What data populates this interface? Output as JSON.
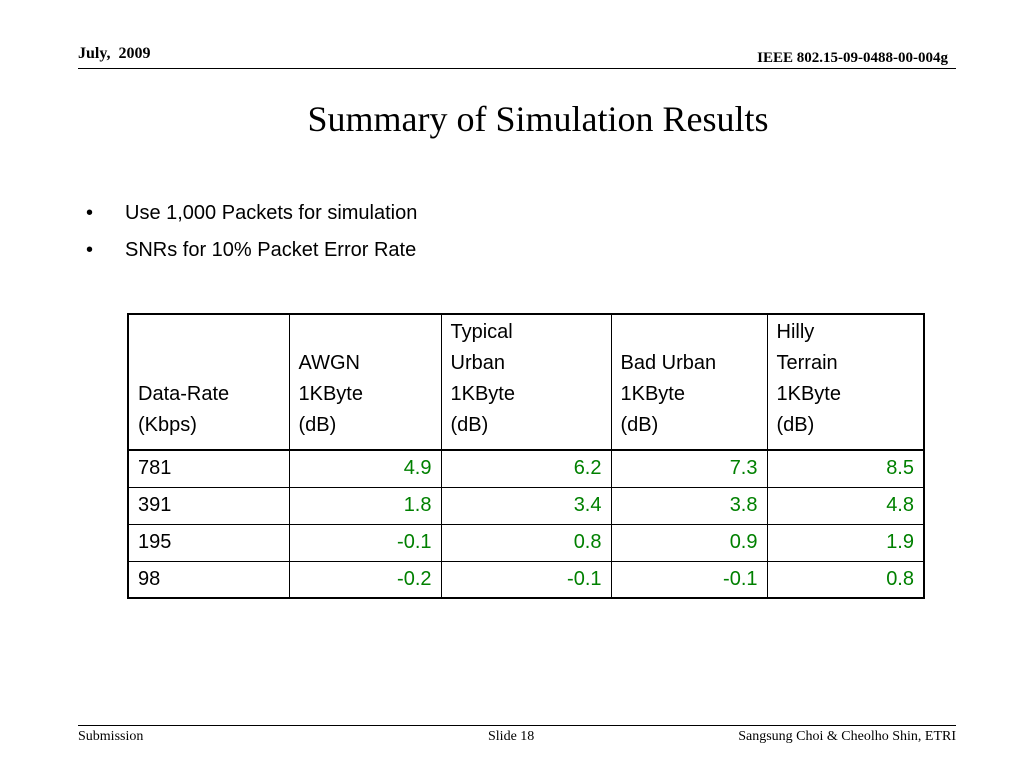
{
  "header": {
    "date": "July,  2009",
    "doc_id": "IEEE 802.15-09-0488-00-004g"
  },
  "title": "Summary of Simulation Results",
  "bullets": [
    "Use 1,000 Packets for simulation",
    "SNRs for 10% Packet Error Rate"
  ],
  "table": {
    "headers": [
      "Data-Rate\n(Kbps)",
      "AWGN\n1KByte\n(dB)",
      "Typical\nUrban\n1KByte\n(dB)",
      "Bad Urban\n1KByte\n(dB)",
      "Hilly\nTerrain\n1KByte\n(dB)"
    ],
    "rows": [
      [
        "781",
        "4.9",
        "6.2",
        "7.3",
        "8.5"
      ],
      [
        "391",
        "1.8",
        "3.4",
        "3.8",
        "4.8"
      ],
      [
        "195",
        "-0.1",
        "0.8",
        "0.9",
        "1.9"
      ],
      [
        "98",
        "-0.2",
        "-0.1",
        "-0.1",
        "0.8"
      ]
    ],
    "value_color": "#008000"
  },
  "footer": {
    "left": "Submission",
    "center": "Slide 18",
    "right": "Sangsung Choi & Cheolho Shin, ETRI"
  }
}
